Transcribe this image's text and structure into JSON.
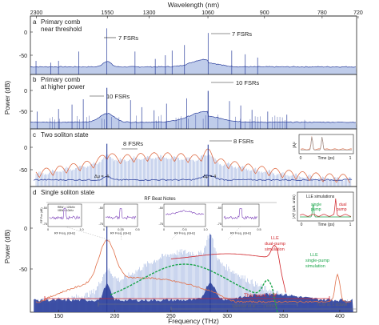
{
  "colors": {
    "blue": "#2b3f9c",
    "light_blue": "#8aa2d8",
    "orange": "#e0704a",
    "green": "#1aa54a",
    "purple": "#7b3fb8",
    "red": "#d0242a",
    "gray": "#9a9a9a"
  },
  "top_axis": {
    "label": "Wavelength (nm)",
    "ticks": [
      "2300",
      "1550",
      "1300",
      "1060",
      "900",
      "780",
      "720"
    ]
  },
  "bottom_axis": {
    "label": "Frequency (THz)",
    "ticks": [
      "150",
      "200",
      "250",
      "300",
      "350",
      "400"
    ]
  },
  "ylabel_top": "Power (dB)",
  "ylabel_bottom": "Power (dB)",
  "panels": {
    "a": {
      "letter": "a",
      "title_line1": "Primary comb",
      "title_line2": "near threshold",
      "ticks": [
        "0",
        "-50"
      ],
      "annotations": [
        "7 FSRs",
        "7 FSRs"
      ]
    },
    "b": {
      "letter": "b",
      "title_line1": "Primary comb",
      "title_line2": "at higher power",
      "ticks": [
        "0",
        "-50"
      ],
      "annotations": [
        "10 FSRs",
        "10 FSRs"
      ]
    },
    "c": {
      "letter": "c",
      "title": "Two soliton state",
      "ticks": [
        "0",
        "-50"
      ],
      "annotations": [
        "8 FSRs",
        "8 FSRs",
        "Δμ = -4",
        "Δμ = 4"
      ],
      "inset": {
        "ylabel": "|A|²",
        "xlabel": "Time (ps)",
        "xticks": [
          "0",
          "1"
        ]
      }
    },
    "d": {
      "letter": "d",
      "title": "Single soliton state",
      "ticks": [
        "0",
        "-50"
      ],
      "rf_title": "RF Beat Notes",
      "rf_insets": [
        {
          "ylabel": "RF Pwr (dB)",
          "xticks": [
            "0",
            "1.0"
          ],
          "xlabel": "RF Freq. (GHz)",
          "legend1": "RBW = 120kHz",
          "legend2": "VBW = 10kHz",
          "yticks": [
            "-50",
            "-75"
          ]
        },
        {
          "xticks": [
            "0",
            "0.25",
            "0.5"
          ],
          "xlabel": "RF Freq. (GHz)",
          "yticks": [
            "-50",
            "-75"
          ]
        },
        {
          "xticks": [
            "0",
            "0.5",
            "1.0"
          ],
          "xlabel": "RF Freq. (GHz)",
          "yticks": [
            "-50",
            "-75"
          ]
        },
        {
          "xticks": [
            "0",
            "0.5"
          ],
          "xlabel": "RF Freq. (GHz)",
          "yticks": [
            "-50",
            "-75"
          ]
        }
      ],
      "lle_inset": {
        "title": "LLE simulations",
        "ylabel": "|A|² (arb. units)",
        "xlabel": "Time (ps)",
        "xticks": [
          "0",
          "1"
        ],
        "single_label_1": "single",
        "single_label_2": "pump",
        "dual_label_1": "dual",
        "dual_label_2": "pump"
      },
      "lle_dual_1": "LLE",
      "lle_dual_2": "dual-pump",
      "lle_dual_3": "simulation",
      "lle_single_1": "LLE",
      "lle_single_2": "single-pump",
      "lle_single_3": "simulation",
      "this_work": "This work: f-3f",
      "spencer": "Spencer  et al. — 1 octave",
      "yu": "Yu et al. 1 octave"
    }
  },
  "chart_data": {
    "type": "line",
    "xlabel": "Frequency (THz)",
    "ylabel": "Power (dB)",
    "xlim": [
      125,
      415
    ],
    "top_axis_label": "Wavelength (nm)",
    "top_axis_ticks_nm": [
      2300,
      1550,
      1300,
      1060,
      900,
      780,
      720
    ],
    "panels": [
      {
        "panel": "a",
        "title": "Primary comb near threshold",
        "pump_THz": 193,
        "second_pump_THz": 283,
        "primary_spacing_FSRs": 7,
        "comb_floor_dB": -72
      },
      {
        "panel": "b",
        "title": "Primary comb at higher power",
        "pump_THz": 193,
        "second_pump_THz": 283,
        "primary_spacing_FSRs": 10,
        "comb_floor_dB": -72
      },
      {
        "panel": "c",
        "title": "Two soliton state",
        "pump_THz": 193,
        "second_pump_THz": 283,
        "spacing_FSRs": 8,
        "delta_mu": [
          -4,
          4
        ]
      },
      {
        "panel": "d",
        "title": "Single soliton state",
        "pump_THz": 193,
        "second_pump_THz": 283,
        "dispersive_wave_THz": 340,
        "span_THz": [
          130,
          410
        ]
      }
    ]
  }
}
